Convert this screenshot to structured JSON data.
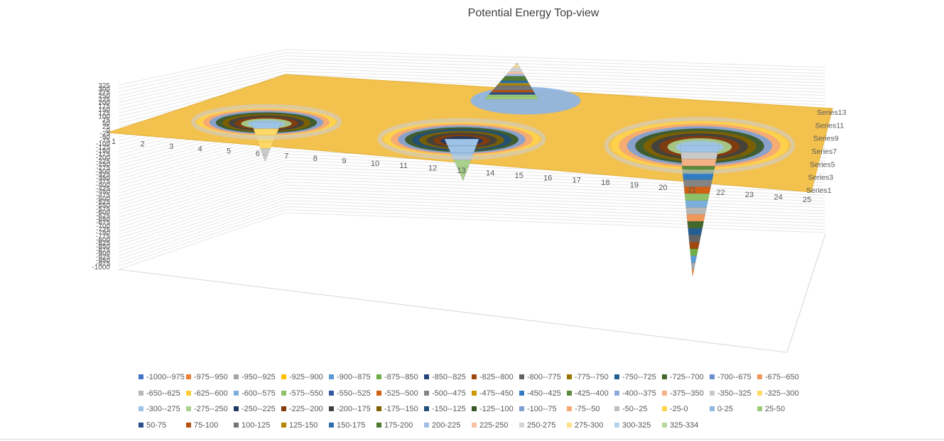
{
  "chart_data": {
    "type": "surface",
    "title": "Potential Energy Top-view",
    "x_categories": [
      "1",
      "2",
      "3",
      "4",
      "5",
      "6",
      "7",
      "8",
      "9",
      "10",
      "11",
      "12",
      "13",
      "14",
      "15",
      "16",
      "17",
      "18",
      "19",
      "20",
      "21",
      "22",
      "23",
      "24",
      "25"
    ],
    "series_labels": [
      "Series1",
      "Series3",
      "Series5",
      "Series7",
      "Series9",
      "Series11",
      "Series13"
    ],
    "z_ticks": [
      "325",
      "300",
      "275",
      "250",
      "225",
      "200",
      "175",
      "150",
      "125",
      "100",
      "75",
      "50",
      "25",
      "0",
      "-25",
      "-50",
      "-75",
      "-100",
      "-125",
      "-150",
      "-175",
      "-200",
      "-225",
      "-250",
      "-275",
      "-300",
      "-325",
      "-350",
      "-375",
      "-400",
      "-425",
      "-450",
      "-475",
      "-500",
      "-525",
      "-550",
      "-575",
      "-600",
      "-625",
      "-650",
      "-675",
      "-700",
      "-725",
      "-750",
      "-775",
      "-800",
      "-825",
      "-850",
      "-875",
      "-900",
      "-925",
      "-950",
      "-975",
      "-1000"
    ],
    "zlim": [
      -1000,
      325
    ],
    "legend_position": "bottom",
    "features": [
      {
        "kind": "well",
        "x": 7,
        "min": -350
      },
      {
        "kind": "well",
        "x": 14,
        "min": -250
      },
      {
        "kind": "well",
        "x": 22,
        "min": -1000
      },
      {
        "kind": "peak",
        "x": 15,
        "max": 334
      }
    ],
    "legend": [
      {
        "label": "-1000--975",
        "color": "#4472c4"
      },
      {
        "label": "-975--950",
        "color": "#ed7d31"
      },
      {
        "label": "-950--925",
        "color": "#a5a5a5"
      },
      {
        "label": "-925--900",
        "color": "#ffc000"
      },
      {
        "label": "-900--875",
        "color": "#5b9bd5"
      },
      {
        "label": "-875--850",
        "color": "#70ad47"
      },
      {
        "label": "-850--825",
        "color": "#264478"
      },
      {
        "label": "-825--800",
        "color": "#9e480e"
      },
      {
        "label": "-800--775",
        "color": "#636363"
      },
      {
        "label": "-775--750",
        "color": "#997300"
      },
      {
        "label": "-750--725",
        "color": "#255e91"
      },
      {
        "label": "-725--700",
        "color": "#43682b"
      },
      {
        "label": "-700--675",
        "color": "#698ed0"
      },
      {
        "label": "-675--650",
        "color": "#f1975a"
      },
      {
        "label": "-650--625",
        "color": "#b7b7b7"
      },
      {
        "label": "-625--600",
        "color": "#ffcd33"
      },
      {
        "label": "-600--575",
        "color": "#7cafdd"
      },
      {
        "label": "-575--550",
        "color": "#8cc168"
      },
      {
        "label": "-550--525",
        "color": "#335aa1"
      },
      {
        "label": "-525--500",
        "color": "#d26012"
      },
      {
        "label": "-500--475",
        "color": "#848484"
      },
      {
        "label": "-475--450",
        "color": "#cc9a00"
      },
      {
        "label": "-450--425",
        "color": "#327dc2"
      },
      {
        "label": "-425--400",
        "color": "#5a8a39"
      },
      {
        "label": "-400--375",
        "color": "#8faadc"
      },
      {
        "label": "-375--350",
        "color": "#f4b183"
      },
      {
        "label": "-350--325",
        "color": "#c9c9c9"
      },
      {
        "label": "-325--300",
        "color": "#ffd966"
      },
      {
        "label": "-300--275",
        "color": "#9dc3e6"
      },
      {
        "label": "-275--250",
        "color": "#a9d18e"
      },
      {
        "label": "-250--225",
        "color": "#203864"
      },
      {
        "label": "-225--200",
        "color": "#843c0c"
      },
      {
        "label": "-200--175",
        "color": "#404040"
      },
      {
        "label": "-175--150",
        "color": "#7f6000"
      },
      {
        "label": "-150--125",
        "color": "#1f4e79"
      },
      {
        "label": "-125--100",
        "color": "#385723"
      },
      {
        "label": "-100--75",
        "color": "#7f9fd3"
      },
      {
        "label": "-75--50",
        "color": "#f4a774"
      },
      {
        "label": "-50--25",
        "color": "#bfbfbf"
      },
      {
        "label": "-25-0",
        "color": "#ffd34d"
      },
      {
        "label": "0-25",
        "color": "#8db9e2"
      },
      {
        "label": "25-50",
        "color": "#9ccc79"
      },
      {
        "label": "50-75",
        "color": "#2a4e8c"
      },
      {
        "label": "75-100",
        "color": "#b5520f"
      },
      {
        "label": "100-125",
        "color": "#757575"
      },
      {
        "label": "125-150",
        "color": "#b38700"
      },
      {
        "label": "150-175",
        "color": "#2c6faa"
      },
      {
        "label": "175-200",
        "color": "#4e7932"
      },
      {
        "label": "200-225",
        "color": "#a4bde5"
      },
      {
        "label": "225-250",
        "color": "#f7c2a0"
      },
      {
        "label": "250-275",
        "color": "#d4d4d4"
      },
      {
        "label": "275-300",
        "color": "#ffe08a"
      },
      {
        "label": "300-325",
        "color": "#b4d3ee"
      },
      {
        "label": "325-334",
        "color": "#b6d9a0"
      }
    ],
    "surface_color": "#f2c14e",
    "grid": true
  }
}
